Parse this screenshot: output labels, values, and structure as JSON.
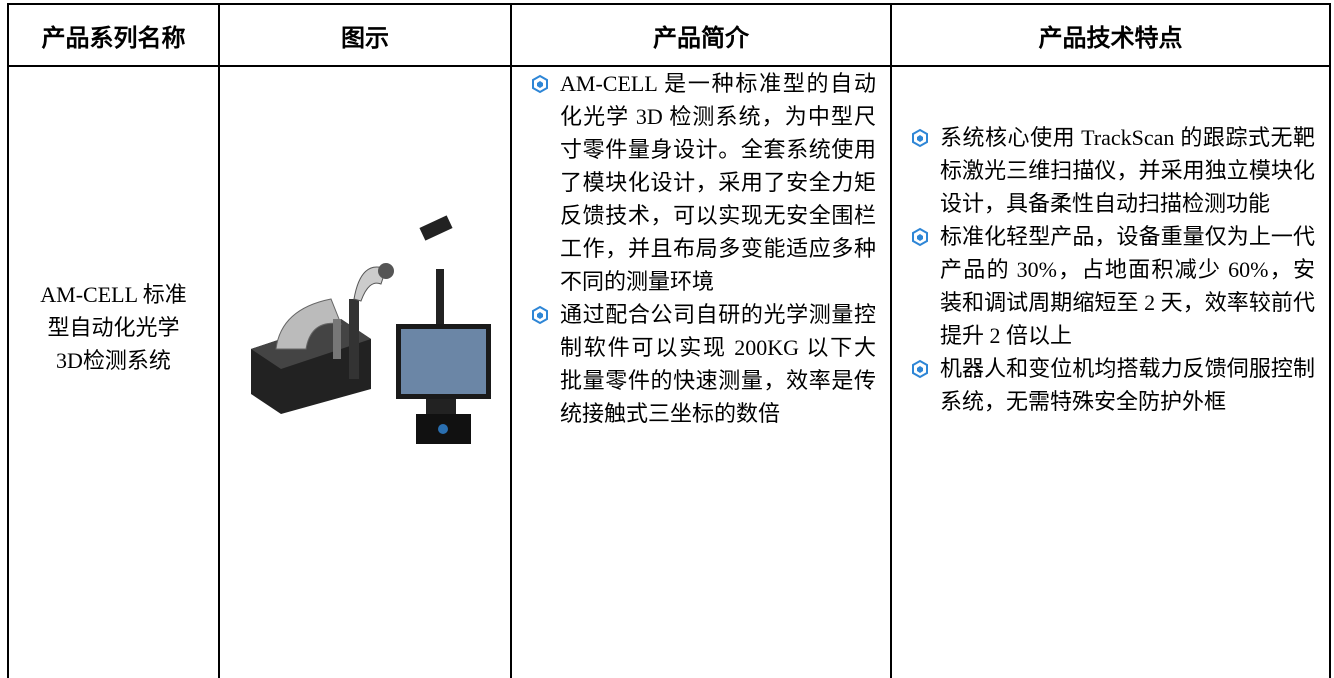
{
  "table": {
    "headers": [
      "产品系列名称",
      "图示",
      "产品简介",
      "产品技术特点"
    ],
    "rows": [
      {
        "name": "AM-CELL 标准型自动化光学3D检测系统",
        "intro": [
          "AM-CELL 是一种标准型的自动化光学 3D 检测系统，为中型尺寸零件量身设计。全套系统使用了模块化设计，采用了安全力矩反馈技术，可以实现无安全围栏工作，并且布局多变能适应多种不同的测量环境",
          "通过配合公司自研的光学测量控制软件可以实现 200KG 以下大批量零件的快速测量，效率是传统接触式三坐标的数倍"
        ],
        "features": [
          "系统核心使用 TrackScan 的跟踪式无靶标激光三维扫描仪，并采用独立模块化设计，具备柔性自动扫描检测功能",
          "标准化轻型产品，设备重量仅为上一代产品的 30%，占地面积减少 60%，安装和调试周期缩短至 2 天，效率较前代提升 2 倍以上",
          "机器人和变位机均搭载力反馈伺服控制系统，无需特殊安全防护外框"
        ]
      }
    ]
  }
}
